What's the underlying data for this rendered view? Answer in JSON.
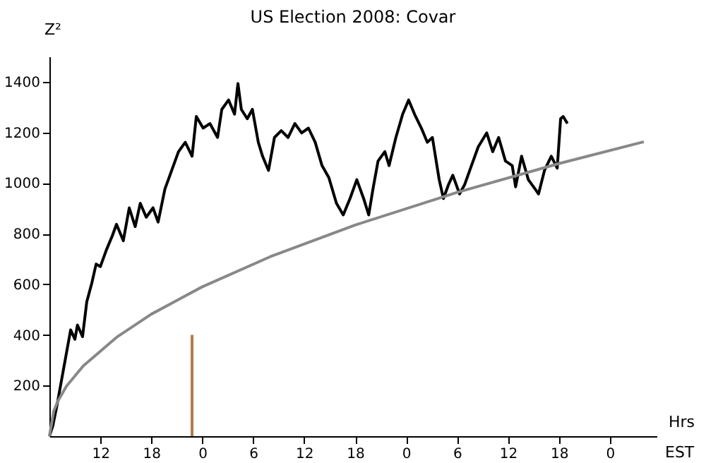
{
  "chart_data": {
    "type": "line",
    "title": "US Election 2008: Covar",
    "ylabel": "Z²",
    "xlabel": "Hrs",
    "annotations": [
      "EST"
    ],
    "xlim": [
      "2008-11-04T06:00",
      "2008-11-07T05:30"
    ],
    "ylim": [
      0,
      1500
    ],
    "xticks": [
      {
        "value": "2008-11-04T12:00",
        "label": "12"
      },
      {
        "value": "2008-11-04T18:00",
        "label": "18"
      },
      {
        "value": "2008-11-05T00:00",
        "label": "0"
      },
      {
        "value": "2008-11-05T06:00",
        "label": "6"
      },
      {
        "value": "2008-11-05T12:00",
        "label": "12"
      },
      {
        "value": "2008-11-05T18:00",
        "label": "18"
      },
      {
        "value": "2008-11-06T00:00",
        "label": "0"
      },
      {
        "value": "2008-11-06T06:00",
        "label": "6"
      },
      {
        "value": "2008-11-06T12:00",
        "label": "12"
      },
      {
        "value": "2008-11-06T18:00",
        "label": "18"
      },
      {
        "value": "2008-11-07T00:00",
        "label": "0"
      }
    ],
    "yticks": [
      200,
      400,
      600,
      800,
      1000,
      1200,
      1400
    ],
    "grid": false,
    "line_style": "solid",
    "marker": "none",
    "series": [
      {
        "color": "#000000",
        "x": [
          "2008-11-04T06:00",
          "2008-11-04T06:24",
          "2008-11-04T06:54",
          "2008-11-04T07:18",
          "2008-11-04T07:42",
          "2008-11-04T08:06",
          "2008-11-04T08:30",
          "2008-11-04T09:00",
          "2008-11-04T09:18",
          "2008-11-04T09:54",
          "2008-11-04T10:24",
          "2008-11-04T11:00",
          "2008-11-04T11:30",
          "2008-11-04T12:00",
          "2008-11-04T12:42",
          "2008-11-04T13:24",
          "2008-11-04T13:54",
          "2008-11-04T14:42",
          "2008-11-04T15:24",
          "2008-11-04T16:06",
          "2008-11-04T16:42",
          "2008-11-04T17:24",
          "2008-11-04T18:12",
          "2008-11-04T18:48",
          "2008-11-04T19:36",
          "2008-11-04T20:24",
          "2008-11-04T21:12",
          "2008-11-04T22:00",
          "2008-11-04T22:48",
          "2008-11-04T23:18",
          "2008-11-05T00:06",
          "2008-11-05T00:54",
          "2008-11-05T01:48",
          "2008-11-05T02:18",
          "2008-11-05T03:06",
          "2008-11-05T03:48",
          "2008-11-05T04:12",
          "2008-11-05T04:36",
          "2008-11-05T05:18",
          "2008-11-05T05:54",
          "2008-11-05T06:36",
          "2008-11-05T07:06",
          "2008-11-05T07:48",
          "2008-11-05T08:30",
          "2008-11-05T09:18",
          "2008-11-05T10:06",
          "2008-11-05T10:54",
          "2008-11-05T11:42",
          "2008-11-05T12:30",
          "2008-11-05T13:18",
          "2008-11-05T14:06",
          "2008-11-05T14:54",
          "2008-11-05T15:48",
          "2008-11-05T16:36",
          "2008-11-05T17:24",
          "2008-11-05T18:12",
          "2008-11-05T19:00",
          "2008-11-05T19:36",
          "2008-11-05T20:06",
          "2008-11-05T20:42",
          "2008-11-05T21:30",
          "2008-11-05T22:00",
          "2008-11-05T22:48",
          "2008-11-05T23:36",
          "2008-11-06T00:18",
          "2008-11-06T01:00",
          "2008-11-06T01:48",
          "2008-11-06T02:30",
          "2008-11-06T03:06",
          "2008-11-06T03:54",
          "2008-11-06T04:24",
          "2008-11-06T05:00",
          "2008-11-06T05:30",
          "2008-11-06T06:18",
          "2008-11-06T06:54",
          "2008-11-06T07:42",
          "2008-11-06T08:30",
          "2008-11-06T09:30",
          "2008-11-06T10:12",
          "2008-11-06T10:54",
          "2008-11-06T11:42",
          "2008-11-06T12:30",
          "2008-11-06T12:54",
          "2008-11-06T13:36",
          "2008-11-06T14:24",
          "2008-11-06T15:12",
          "2008-11-06T15:36",
          "2008-11-06T16:18",
          "2008-11-06T17:06",
          "2008-11-06T17:48",
          "2008-11-06T18:12",
          "2008-11-06T18:30",
          "2008-11-06T19:00"
        ],
        "values": [
          0,
          41,
          124,
          198,
          272,
          346,
          420,
          383,
          439,
          393,
          531,
          606,
          680,
          670,
          735,
          791,
          837,
          772,
          902,
          828,
          920,
          865,
          902,
          846,
          976,
          1050,
          1124,
          1161,
          1106,
          1263,
          1217,
          1235,
          1180,
          1291,
          1328,
          1272,
          1393,
          1291,
          1254,
          1291,
          1161,
          1106,
          1050,
          1180,
          1207,
          1180,
          1235,
          1198,
          1217,
          1161,
          1069,
          1022,
          920,
          874,
          939,
          1013,
          939,
          874,
          976,
          1087,
          1124,
          1069,
          1180,
          1272,
          1328,
          1272,
          1217,
          1161,
          1180,
          1013,
          939,
          994,
          1031,
          957,
          994,
          1069,
          1143,
          1198,
          1124,
          1180,
          1087,
          1069,
          985,
          1106,
          1013,
          976,
          957,
          1050,
          1106,
          1059,
          1254,
          1263,
          1235
        ]
      },
      {
        "color": "#888888",
        "x": [
          "2008-11-04T06:00",
          "2008-11-04T06:30",
          "2008-11-04T07:00",
          "2008-11-04T08:00",
          "2008-11-04T10:00",
          "2008-11-04T14:00",
          "2008-11-04T18:00",
          "2008-11-05T00:00",
          "2008-11-05T08:00",
          "2008-11-05T18:00",
          "2008-11-06T06:00",
          "2008-11-06T18:00",
          "2008-11-07T04:00"
        ],
        "values": [
          0,
          98,
          139,
          197,
          278,
          393,
          482,
          590,
          709,
          834,
          963,
          1077,
          1163
        ]
      },
      {
        "color": "#b07c4a",
        "x": [
          "2008-11-04T22:48",
          "2008-11-04T22:48"
        ],
        "values": [
          0,
          400
        ]
      }
    ]
  }
}
